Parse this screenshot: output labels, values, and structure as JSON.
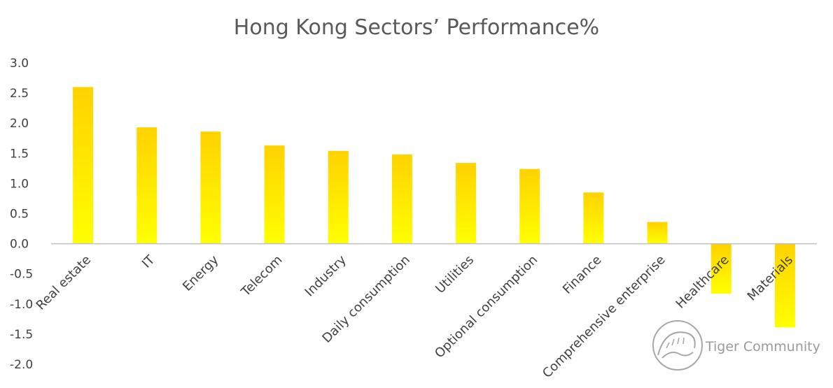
{
  "chart_data": {
    "type": "bar",
    "title": "Hong Kong Sectors’ Performance%",
    "categories": [
      "Real estate",
      "IT",
      "Energy",
      "Telecom",
      "Industry",
      "Daily consumption",
      "Utilities",
      "Optional consumption",
      "Finance",
      "Comprehensive enterprise",
      "Healthcare",
      "Materials"
    ],
    "values": [
      2.6,
      1.93,
      1.86,
      1.63,
      1.54,
      1.48,
      1.34,
      1.24,
      0.85,
      0.36,
      -0.83,
      -1.39
    ],
    "ylim": [
      -2.0,
      3.0
    ],
    "yticks": [
      "3.0",
      "2.5",
      "2.0",
      "1.5",
      "1.0",
      "0.5",
      "0.0",
      "-0.5",
      "-1.0",
      "-1.5",
      "-2.0"
    ],
    "grid": false,
    "legend": "none",
    "colors": {
      "bar_top": "#FFD200",
      "bar_bottom": "#FFFF00",
      "axis": "#BFBFBF"
    }
  },
  "watermark": {
    "text": "Tiger Community"
  }
}
